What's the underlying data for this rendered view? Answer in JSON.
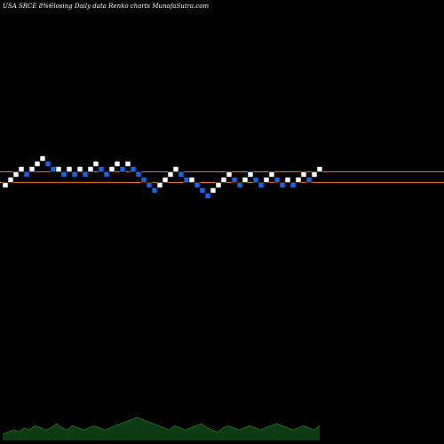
{
  "header": {
    "symbol": "USA SRCE 8%~",
    "description": "Closing Daily data Renko charts MunafaSutra.com"
  },
  "colors": {
    "background": "#000000",
    "up_brick": "#ffffff",
    "down_brick": "#1565e8",
    "reference_line": "#c87832",
    "volume_area": "#0d3b12",
    "volume_top": "#1f7a1f"
  },
  "chart_data": {
    "type": "renko",
    "title": "",
    "reference_lines": [
      1,
      -1
    ],
    "bricks": [
      {
        "d": "up",
        "level": -1
      },
      {
        "d": "up",
        "level": 0
      },
      {
        "d": "up",
        "level": 1
      },
      {
        "d": "up",
        "level": 2
      },
      {
        "d": "down",
        "level": 1
      },
      {
        "d": "up",
        "level": 2
      },
      {
        "d": "up",
        "level": 3
      },
      {
        "d": "up",
        "level": 4
      },
      {
        "d": "down",
        "level": 3
      },
      {
        "d": "down",
        "level": 2
      },
      {
        "d": "up",
        "level": 2
      },
      {
        "d": "down",
        "level": 1
      },
      {
        "d": "up",
        "level": 2
      },
      {
        "d": "down",
        "level": 1
      },
      {
        "d": "up",
        "level": 2
      },
      {
        "d": "down",
        "level": 1
      },
      {
        "d": "up",
        "level": 2
      },
      {
        "d": "up",
        "level": 3
      },
      {
        "d": "down",
        "level": 2
      },
      {
        "d": "down",
        "level": 1
      },
      {
        "d": "up",
        "level": 2
      },
      {
        "d": "up",
        "level": 3
      },
      {
        "d": "down",
        "level": 2
      },
      {
        "d": "up",
        "level": 3
      },
      {
        "d": "down",
        "level": 2
      },
      {
        "d": "down",
        "level": 1
      },
      {
        "d": "down",
        "level": 0
      },
      {
        "d": "down",
        "level": -1
      },
      {
        "d": "down",
        "level": -2
      },
      {
        "d": "up",
        "level": -1
      },
      {
        "d": "up",
        "level": 0
      },
      {
        "d": "up",
        "level": 1
      },
      {
        "d": "up",
        "level": 2
      },
      {
        "d": "down",
        "level": 1
      },
      {
        "d": "down",
        "level": 0
      },
      {
        "d": "up",
        "level": 0
      },
      {
        "d": "down",
        "level": -1
      },
      {
        "d": "down",
        "level": -2
      },
      {
        "d": "down",
        "level": -3
      },
      {
        "d": "up",
        "level": -2
      },
      {
        "d": "up",
        "level": -1
      },
      {
        "d": "up",
        "level": 0
      },
      {
        "d": "up",
        "level": 1
      },
      {
        "d": "down",
        "level": 0
      },
      {
        "d": "down",
        "level": -1
      },
      {
        "d": "up",
        "level": 0
      },
      {
        "d": "up",
        "level": 1
      },
      {
        "d": "down",
        "level": 0
      },
      {
        "d": "down",
        "level": -1
      },
      {
        "d": "up",
        "level": 0
      },
      {
        "d": "up",
        "level": 1
      },
      {
        "d": "down",
        "level": 0
      },
      {
        "d": "down",
        "level": -1
      },
      {
        "d": "up",
        "level": 0
      },
      {
        "d": "down",
        "level": -1
      },
      {
        "d": "up",
        "level": 0
      },
      {
        "d": "up",
        "level": 1
      },
      {
        "d": "down",
        "level": 0
      },
      {
        "d": "up",
        "level": 1
      },
      {
        "d": "up",
        "level": 2
      }
    ],
    "volume": [
      3,
      4,
      5,
      4,
      6,
      5,
      7,
      6,
      5,
      6,
      8,
      6,
      5,
      7,
      6,
      5,
      6,
      7,
      6,
      5,
      6,
      7,
      8,
      9,
      10,
      11,
      10,
      9,
      8,
      7,
      6,
      5,
      7,
      6,
      5,
      6,
      7,
      8,
      6,
      5,
      4,
      6,
      7,
      6,
      5,
      6,
      7,
      6,
      5,
      6,
      7,
      8,
      7,
      6,
      5,
      6,
      7,
      6,
      5,
      7
    ]
  }
}
